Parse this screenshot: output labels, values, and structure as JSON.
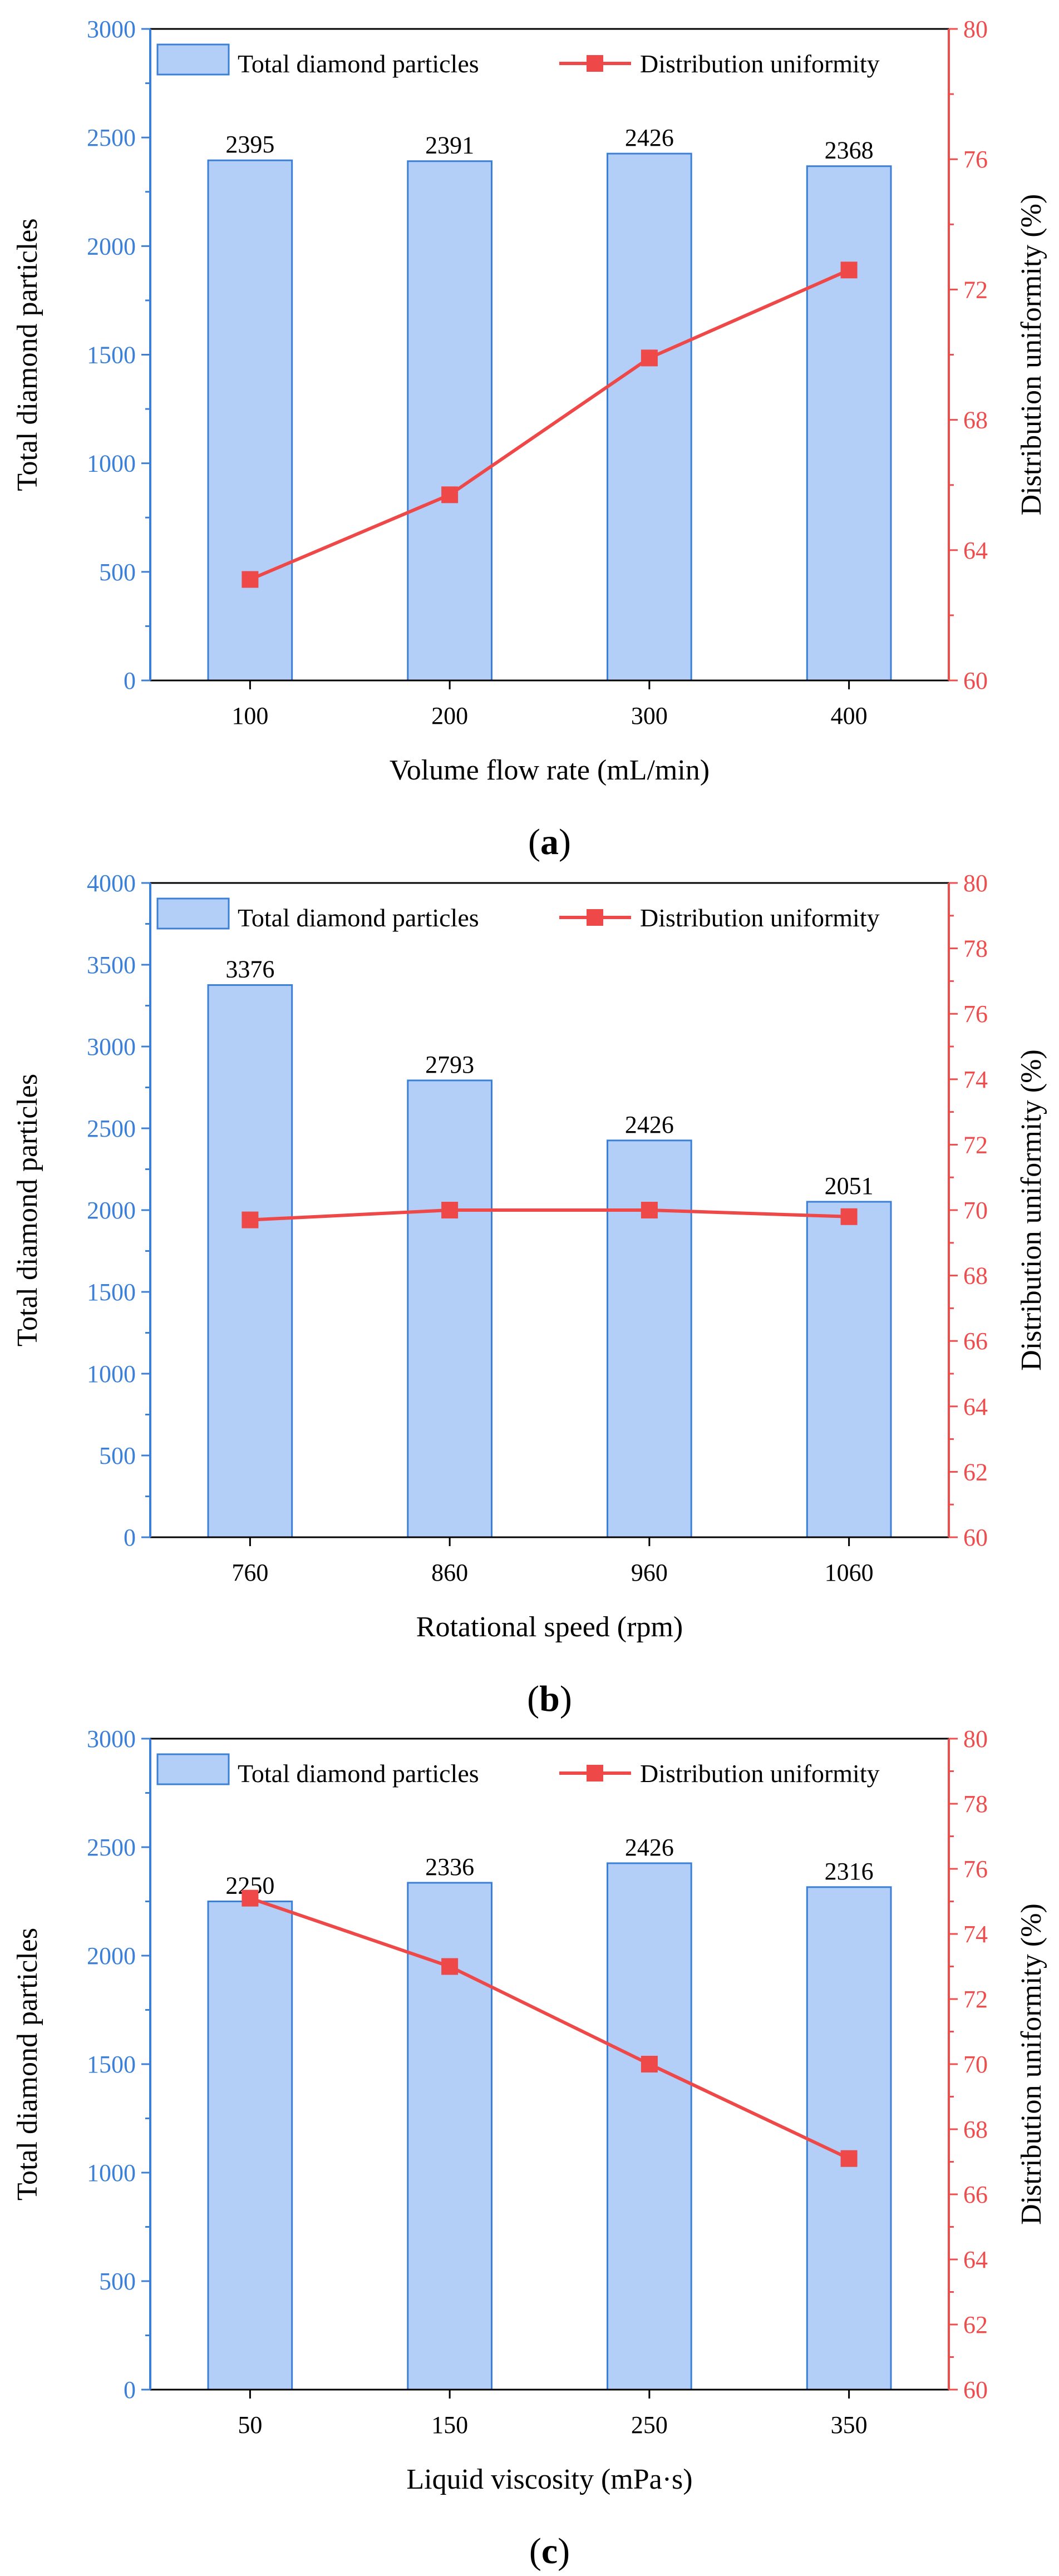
{
  "figure_title": "",
  "colors": {
    "bar_fill": "#b3cff7",
    "bar_stroke": "#3b80d6",
    "left_axis": "#3b80d6",
    "right_axis": "#f04c4c",
    "line": "#ee4848",
    "text": "#000000"
  },
  "chart_data": [
    {
      "type": "bar",
      "panel_label": "(a)",
      "xlabel": "Volume flow rate (mL/min)",
      "ylabel": "Total diamond particles",
      "y2label": "Distribution uniformity (%)",
      "categories": [
        "100",
        "200",
        "300",
        "400"
      ],
      "ylim": [
        0,
        3000
      ],
      "yticks": [
        0,
        500,
        1000,
        1500,
        2000,
        2500,
        3000
      ],
      "y2lim": [
        60,
        80
      ],
      "y2ticks": [
        60,
        64,
        68,
        72,
        76,
        80
      ],
      "legend": [
        "Total diamond particles",
        "Distribution uniformity"
      ],
      "legend_position": "top",
      "series": [
        {
          "name": "Total diamond particles",
          "type": "bar",
          "axis": "left",
          "values": [
            2395,
            2391,
            2426,
            2368
          ]
        },
        {
          "name": "Distribution uniformity",
          "type": "line",
          "axis": "right",
          "values": [
            63.1,
            65.7,
            69.9,
            72.6
          ]
        }
      ]
    },
    {
      "type": "bar",
      "panel_label": "(b)",
      "xlabel": "Rotational speed (rpm)",
      "ylabel": "Total diamond particles",
      "y2label": "Distribution uniformity (%)",
      "categories": [
        "760",
        "860",
        "960",
        "1060"
      ],
      "ylim": [
        0,
        4000
      ],
      "yticks": [
        0,
        500,
        1000,
        1500,
        2000,
        2500,
        3000,
        3500,
        4000
      ],
      "y2lim": [
        60,
        80
      ],
      "y2ticks": [
        60,
        62,
        64,
        66,
        68,
        70,
        72,
        74,
        76,
        78,
        80
      ],
      "legend": [
        "Total diamond particles",
        "Distribution uniformity"
      ],
      "legend_position": "top",
      "series": [
        {
          "name": "Total diamond particles",
          "type": "bar",
          "axis": "left",
          "values": [
            3376,
            2793,
            2426,
            2051
          ]
        },
        {
          "name": "Distribution uniformity",
          "type": "line",
          "axis": "right",
          "values": [
            69.7,
            70.0,
            70.0,
            69.8
          ]
        }
      ]
    },
    {
      "type": "bar",
      "panel_label": "(c)",
      "xlabel": "Liquid viscosity (mPa·s)",
      "ylabel": "Total diamond particles",
      "y2label": "Distribution uniformity (%)",
      "categories": [
        "50",
        "150",
        "250",
        "350"
      ],
      "ylim": [
        0,
        3000
      ],
      "yticks": [
        0,
        500,
        1000,
        1500,
        2000,
        2500,
        3000
      ],
      "y2lim": [
        60,
        80
      ],
      "y2ticks": [
        60,
        62,
        64,
        66,
        68,
        70,
        72,
        74,
        76,
        78,
        80
      ],
      "legend": [
        "Total diamond particles",
        "Distribution uniformity"
      ],
      "legend_position": "top",
      "series": [
        {
          "name": "Total diamond particles",
          "type": "bar",
          "axis": "left",
          "values": [
            2250,
            2336,
            2426,
            2316
          ]
        },
        {
          "name": "Distribution uniformity",
          "type": "line",
          "axis": "right",
          "values": [
            75.1,
            73.0,
            70.0,
            67.1
          ]
        }
      ]
    }
  ]
}
